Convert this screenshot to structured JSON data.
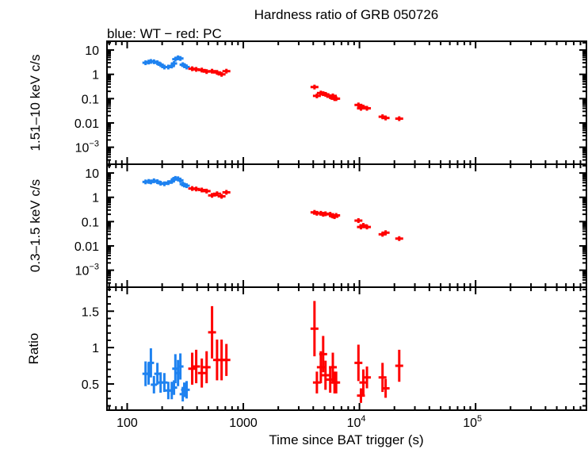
{
  "chart_data": {
    "type": "scatter",
    "title": "Hardness ratio of GRB 050726",
    "subtitle": "blue: WT − red: PC",
    "xlabel": "Time since BAT trigger (s)",
    "xscale": "log",
    "xlim": [
      67,
      900000
    ],
    "xticks": [
      {
        "v": 100,
        "label": "100"
      },
      {
        "v": 1000,
        "label": "1000"
      },
      {
        "v": 10000,
        "label": "10",
        "exp": "4"
      },
      {
        "v": 100000,
        "label": "10",
        "exp": "5"
      }
    ],
    "colors": {
      "WT": "#1e82f0",
      "PC": "#ff0000"
    },
    "panels": [
      {
        "ylabel": "1.51–10 keV c/s",
        "yscale": "log",
        "ylim": [
          0.0002,
          23
        ],
        "yticks": [
          {
            "v": 10,
            "label": "10"
          },
          {
            "v": 1,
            "label": "1"
          },
          {
            "v": 0.1,
            "label": "0.1"
          },
          {
            "v": 0.01,
            "label": "0.01"
          },
          {
            "v": 0.001,
            "label": "10",
            "exp": "−3"
          }
        ],
        "series": [
          {
            "name": "WT",
            "x": [
              144,
              153,
              160,
              170,
              182,
              194,
              209,
              226,
              242,
              253,
              260,
              274,
              287,
              301,
              310,
              325
            ],
            "y": [
              3.0,
              3.2,
              3.4,
              3.3,
              3.0,
              2.5,
              2.0,
              2.0,
              2.2,
              2.8,
              4.2,
              4.8,
              4.5,
              2.5,
              2.3,
              2.0
            ]
          },
          {
            "name": "PC",
            "x": [
              363,
              393,
              439,
              483,
              538,
              594,
              650,
              715,
              4100,
              4300,
              4650,
              4870,
              5100,
              5600,
              5900,
              6100,
              6300,
              9800,
              10300,
              10800,
              11600,
              15800,
              16800,
              22000
            ],
            "y": [
              1.7,
              1.6,
              1.5,
              1.3,
              1.35,
              1.2,
              1.0,
              1.35,
              0.3,
              0.13,
              0.17,
              0.16,
              0.15,
              0.12,
              0.13,
              0.1,
              0.1,
              0.055,
              0.04,
              0.045,
              0.04,
              0.018,
              0.016,
              0.015
            ]
          }
        ]
      },
      {
        "ylabel": "0.3–1.5 keV c/s",
        "yscale": "log",
        "ylim": [
          0.0002,
          23
        ],
        "yticks": [
          {
            "v": 10,
            "label": "10"
          },
          {
            "v": 1,
            "label": "1"
          },
          {
            "v": 0.1,
            "label": "0.1"
          },
          {
            "v": 0.01,
            "label": "0.01"
          },
          {
            "v": 0.001,
            "label": "10",
            "exp": "−3"
          }
        ],
        "series": [
          {
            "name": "WT",
            "x": [
              144,
              153,
              160,
              170,
              182,
              194,
              209,
              226,
              242,
              253,
              260,
              274,
              287,
              301,
              310,
              325
            ],
            "y": [
              4.3,
              4.5,
              4.3,
              4.8,
              4.4,
              3.8,
              3.6,
              4.0,
              4.5,
              5.5,
              6.0,
              5.8,
              5.0,
              3.5,
              3.2,
              3.0
            ]
          },
          {
            "name": "PC",
            "x": [
              363,
              393,
              439,
              483,
              538,
              594,
              650,
              715,
              4100,
              4300,
              4650,
              4870,
              5100,
              5600,
              5900,
              6100,
              6300,
              9800,
              10300,
              10800,
              11600,
              15800,
              16800,
              22000
            ],
            "y": [
              2.3,
              2.2,
              2.0,
              1.8,
              1.2,
              1.4,
              1.1,
              1.6,
              0.24,
              0.22,
              0.22,
              0.2,
              0.21,
              0.2,
              0.17,
              0.16,
              0.18,
              0.11,
              0.06,
              0.07,
              0.06,
              0.03,
              0.035,
              0.02
            ]
          }
        ]
      },
      {
        "ylabel": "Ratio",
        "yscale": "linear",
        "ylim": [
          0.14,
          1.83
        ],
        "yticks": [
          {
            "v": 1.5,
            "label": "1.5"
          },
          {
            "v": 1,
            "label": "1"
          },
          {
            "v": 0.5,
            "label": "0.5"
          }
        ],
        "series": [
          {
            "name": "WT",
            "x": [
              144,
              153,
              160,
              170,
              182,
              194,
              209,
              226,
              242,
              253,
              260,
              274,
              287,
              301,
              310,
              325
            ],
            "y": [
              0.64,
              0.64,
              0.79,
              0.49,
              0.64,
              0.52,
              0.52,
              0.41,
              0.41,
              0.45,
              0.71,
              0.65,
              0.74,
              0.36,
              0.42,
              0.42
            ],
            "err": [
              0.17,
              0.15,
              0.2,
              0.12,
              0.15,
              0.14,
              0.13,
              0.12,
              0.12,
              0.1,
              0.2,
              0.18,
              0.18,
              0.1,
              0.1,
              0.12
            ]
          },
          {
            "name": "PC",
            "x": [
              363,
              393,
              439,
              483,
              538,
              594,
              650,
              715,
              4100,
              4300,
              4650,
              4870,
              5100,
              5600,
              5900,
              6100,
              6300,
              9800,
              10300,
              10800,
              11600,
              15800,
              16800,
              22000
            ],
            "y": [
              0.71,
              0.74,
              0.65,
              0.73,
              1.21,
              0.83,
              0.83,
              0.83,
              1.26,
              0.52,
              0.73,
              0.91,
              0.62,
              0.56,
              0.73,
              0.52,
              0.52,
              0.79,
              0.34,
              0.52,
              0.59,
              0.59,
              0.44,
              0.75
            ],
            "err": [
              0.22,
              0.23,
              0.2,
              0.22,
              0.36,
              0.28,
              0.28,
              0.22,
              0.38,
              0.15,
              0.22,
              0.25,
              0.2,
              0.18,
              0.2,
              0.15,
              0.15,
              0.25,
              0.1,
              0.18,
              0.15,
              0.2,
              0.13,
              0.22
            ]
          }
        ]
      }
    ]
  }
}
